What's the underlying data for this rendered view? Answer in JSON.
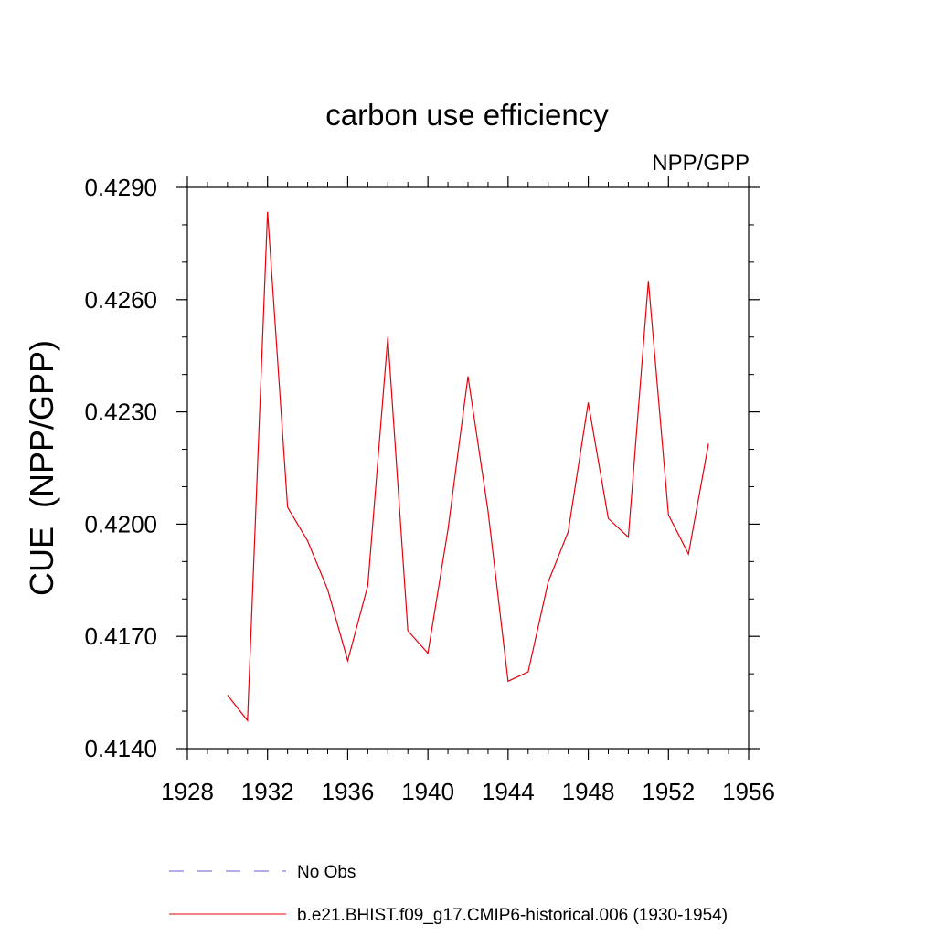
{
  "chart_data": {
    "type": "line",
    "title": "carbon use efficiency",
    "subtitle": "NPP/GPP",
    "xlabel": "",
    "ylabel": "CUE  (NPP/GPP)",
    "xlim": [
      1928,
      1956
    ],
    "ylim": [
      0.414,
      0.429
    ],
    "x_ticks": [
      1928,
      1932,
      1936,
      1940,
      1944,
      1948,
      1952,
      1956
    ],
    "x_tick_labels": [
      "1928",
      "1932",
      "1936",
      "1940",
      "1944",
      "1948",
      "1952",
      "1956"
    ],
    "y_ticks": [
      0.414,
      0.417,
      0.42,
      0.423,
      0.426,
      0.429
    ],
    "y_tick_labels": [
      "0.4140",
      "0.4170",
      "0.4200",
      "0.4230",
      "0.4260",
      "0.4290"
    ],
    "grid": false,
    "legend_position": "bottom",
    "series": [
      {
        "name": "b.e21.BHIST.f09_g17.CMIP6-historical.006 (1930-1954)",
        "color": "#e8000b",
        "style": "solid",
        "x": [
          1930,
          1931,
          1932,
          1933,
          1934,
          1935,
          1936,
          1937,
          1938,
          1939,
          1940,
          1941,
          1942,
          1943,
          1944,
          1945,
          1946,
          1947,
          1948,
          1949,
          1950,
          1951,
          1952,
          1953,
          1954
        ],
        "values": [
          0.41543,
          0.41475,
          0.42835,
          0.42045,
          0.41955,
          0.41825,
          0.41635,
          0.41835,
          0.425,
          0.41715,
          0.41655,
          0.41985,
          0.42395,
          0.42035,
          0.4158,
          0.41605,
          0.41845,
          0.4198,
          0.42325,
          0.42015,
          0.41965,
          0.4265,
          0.42025,
          0.4192,
          0.42215
        ]
      }
    ],
    "legend": [
      {
        "label": "No Obs",
        "color": "#6a5acd",
        "style": "dashed"
      },
      {
        "label": "b.e21.BHIST.f09_g17.CMIP6-historical.006 (1930-1954)",
        "color": "#e8000b",
        "style": "solid"
      }
    ]
  }
}
